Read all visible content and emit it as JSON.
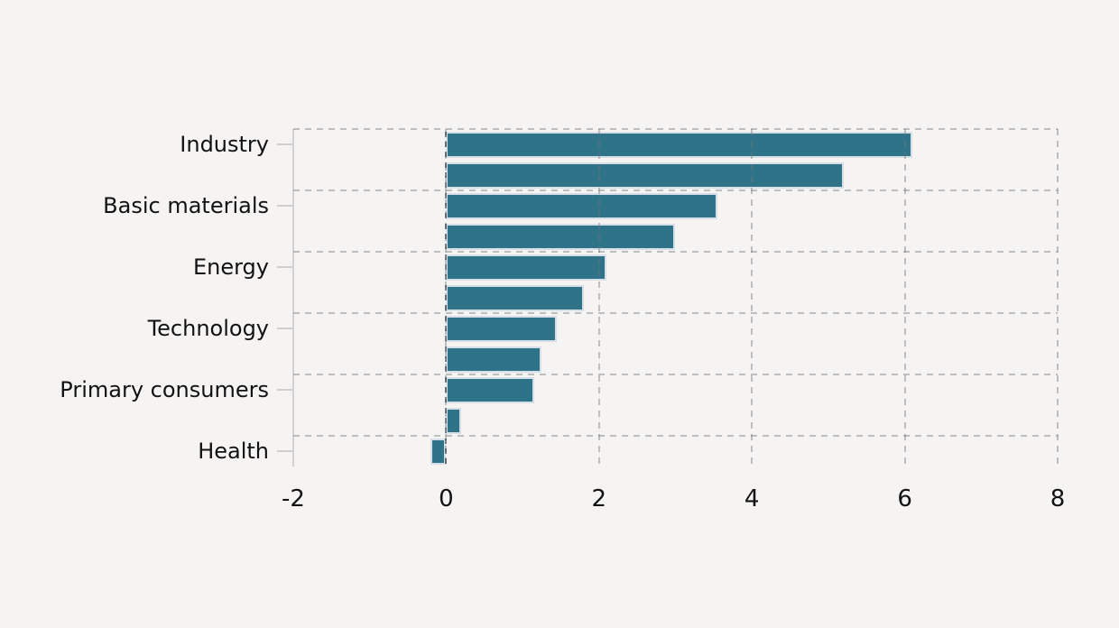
{
  "figure": {
    "background_color": "#f5f4f3",
    "title": ""
  },
  "chart_data": {
    "type": "bar",
    "orientation": "horizontal",
    "title": "",
    "xlabel": "",
    "ylabel": "",
    "xlim": [
      -2,
      8
    ],
    "x_ticks": [
      -2,
      0,
      2,
      4,
      6,
      8
    ],
    "grid": "dashed",
    "legend": "none",
    "categories": [
      "Industry",
      "Basic materials",
      "Energy",
      "Technology",
      "Primary consumers",
      "Health"
    ],
    "bars": [
      {
        "label": "Industry",
        "value": 6.1
      },
      {
        "label": "",
        "value": 5.2
      },
      {
        "label": "Basic materials",
        "value": 3.55
      },
      {
        "label": "",
        "value": 3.0
      },
      {
        "label": "Energy",
        "value": 2.1
      },
      {
        "label": "",
        "value": 1.8
      },
      {
        "label": "Technology",
        "value": 1.45
      },
      {
        "label": "",
        "value": 1.25
      },
      {
        "label": "Primary consumers",
        "value": 1.15
      },
      {
        "label": "",
        "value": 0.2
      },
      {
        "label": "Health",
        "value": -0.2
      }
    ],
    "bar_color": "#2f7389",
    "bar_edge_color": "#d6dfe8",
    "gridline_color": "#c8c8c8",
    "text_color": "#121212"
  }
}
